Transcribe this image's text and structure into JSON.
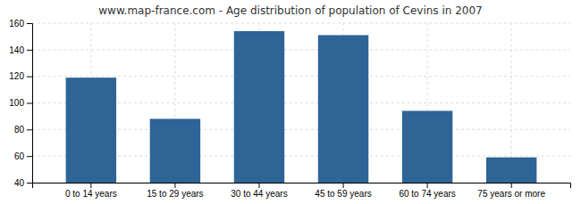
{
  "chart_data": {
    "type": "bar",
    "title": "www.map-france.com - Age distribution of population of Cevins in 2007",
    "categories": [
      "0 to 14 years",
      "15 to 29 years",
      "30 to 44 years",
      "45 to 59 years",
      "60 to 74 years",
      "75 years or more"
    ],
    "values": [
      119,
      88,
      154,
      151,
      94,
      59
    ],
    "color": "#2e6496",
    "ylim": [
      40,
      160
    ],
    "yticks": [
      40,
      60,
      80,
      100,
      120,
      140,
      160
    ],
    "grid": true
  }
}
